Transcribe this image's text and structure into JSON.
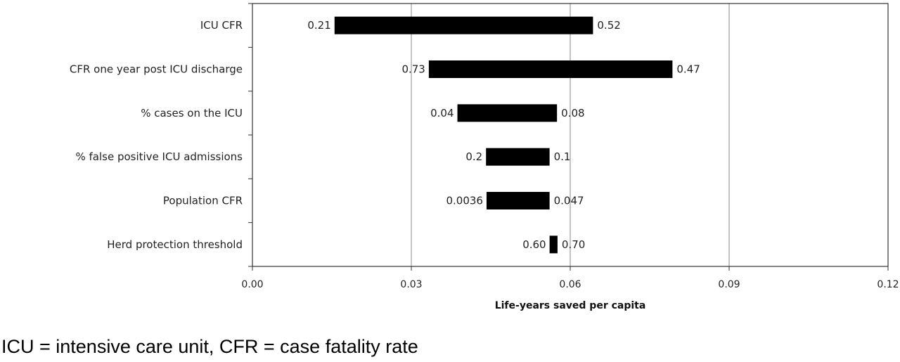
{
  "chart_data": {
    "type": "bar",
    "orientation": "horizontal",
    "subtype": "tornado",
    "title": "",
    "xlabel": "Life-years saved per capita",
    "ylabel": "",
    "xlim": [
      0,
      0.12
    ],
    "xticks": [
      0,
      0.03,
      0.06,
      0.09,
      0.12
    ],
    "xtick_labels": [
      "0.00",
      "0.03",
      "0.06",
      "0.09",
      "0.12"
    ],
    "grid": "vertical major gridlines",
    "bar_color": "#000000",
    "categories": [
      "ICU CFR",
      "CFR one year post ICU discharge",
      "% cases on the ICU",
      "% false positive ICU admissions",
      "Population CFR",
      "Herd protection threshold"
    ],
    "bars": [
      {
        "low": 0.0155,
        "high": 0.0643,
        "low_label": "0.21",
        "high_label": "0.52"
      },
      {
        "low": 0.0333,
        "high": 0.0793,
        "low_label": "0.73",
        "high_label": "0.47"
      },
      {
        "low": 0.0387,
        "high": 0.0575,
        "low_label": "0.04",
        "high_label": "0.08"
      },
      {
        "low": 0.0441,
        "high": 0.0561,
        "low_label": "0.2",
        "high_label": "0.1"
      },
      {
        "low": 0.0442,
        "high": 0.0561,
        "low_label": "0.0036",
        "high_label": "0.047"
      },
      {
        "low": 0.0561,
        "high": 0.0576,
        "low_label": "0.60",
        "high_label": "0.70"
      }
    ]
  },
  "footnote": "ICU = intensive care unit, CFR = case fatality rate"
}
